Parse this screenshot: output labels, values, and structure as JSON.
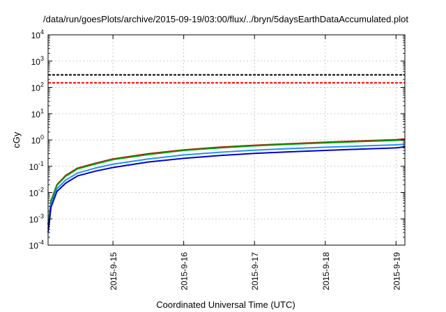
{
  "chart_data": {
    "type": "line",
    "title": "/data/run/goesPlots/archive/2015-09-19/03:00/flux/../bryn/5daysEarthDataAccumulated.plot",
    "xlabel": "Coordinated Universal Time (UTC)",
    "ylabel": "cGy",
    "yscale": "log",
    "ylim": [
      0.0001,
      10000
    ],
    "xlim": [
      "2015-09-14 02:00",
      "2015-09-19 03:00"
    ],
    "grid": true,
    "legend": "none",
    "x_ticks": [
      "2015-9-15",
      "2015-9-16",
      "2015-9-17",
      "2015-9-18",
      "2015-9-19"
    ],
    "y_ticks": [
      {
        "base": "10",
        "exp": "-4",
        "value": 0.0001
      },
      {
        "base": "10",
        "exp": "-3",
        "value": 0.001
      },
      {
        "base": "10",
        "exp": "-2",
        "value": 0.01
      },
      {
        "base": "10",
        "exp": "-1",
        "value": 0.1
      },
      {
        "base": "10",
        "exp": "0",
        "value": 1
      },
      {
        "base": "10",
        "exp": "1",
        "value": 10
      },
      {
        "base": "10",
        "exp": "2",
        "value": 100
      },
      {
        "base": "10",
        "exp": "3",
        "value": 1000
      },
      {
        "base": "10",
        "exp": "4",
        "value": 10000
      }
    ],
    "x": [
      "2015-09-14 02:00",
      "2015-09-14 03:00",
      "2015-09-14 05:00",
      "2015-09-14 08:00",
      "2015-09-14 12:00",
      "2015-09-14 18:00",
      "2015-09-15 00:00",
      "2015-09-15 12:00",
      "2015-09-16 00:00",
      "2015-09-16 12:00",
      "2015-09-17 00:00",
      "2015-09-17 12:00",
      "2015-09-18 00:00",
      "2015-09-18 12:00",
      "2015-09-19 00:00",
      "2015-09-19 03:00"
    ],
    "series": [
      {
        "color": "#cc0000",
        "values": [
          0.0006,
          0.005,
          0.02,
          0.045,
          0.085,
          0.13,
          0.19,
          0.3,
          0.42,
          0.53,
          0.63,
          0.72,
          0.82,
          0.92,
          1.02,
          1.1
        ]
      },
      {
        "color": "#00a000",
        "values": [
          0.0006,
          0.0048,
          0.019,
          0.042,
          0.08,
          0.122,
          0.18,
          0.28,
          0.4,
          0.5,
          0.6,
          0.69,
          0.78,
          0.87,
          0.96,
          1.02
        ]
      },
      {
        "color": "#1e90ff",
        "values": [
          0.0004,
          0.0035,
          0.014,
          0.03,
          0.055,
          0.085,
          0.12,
          0.19,
          0.27,
          0.34,
          0.41,
          0.47,
          0.53,
          0.59,
          0.65,
          0.7
        ]
      },
      {
        "color": "#0000cc",
        "values": [
          0.0003,
          0.0028,
          0.011,
          0.023,
          0.043,
          0.065,
          0.09,
          0.145,
          0.2,
          0.255,
          0.31,
          0.355,
          0.4,
          0.45,
          0.5,
          0.55
        ]
      }
    ],
    "reference_lines": [
      {
        "color": "#000000",
        "style": "dashed",
        "value": 300
      },
      {
        "color": "#ff0000",
        "style": "dashed",
        "value": 150
      }
    ]
  }
}
